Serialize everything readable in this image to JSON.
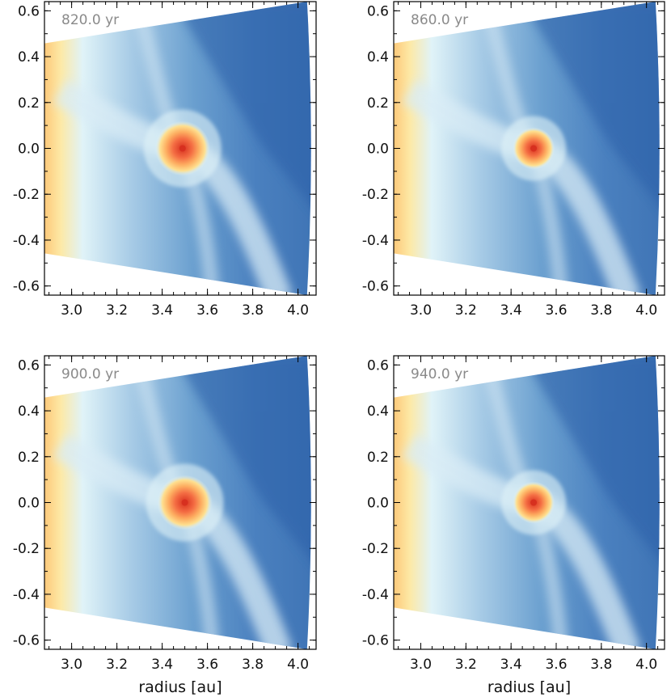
{
  "chart_data": [
    {
      "type": "heatmap",
      "time_label": "820.0 yr",
      "xlabel": "",
      "ylabel": "",
      "xlim": [
        2.88,
        4.08
      ],
      "ylim": [
        -0.64,
        0.64
      ],
      "xticks": [
        "3.0",
        "3.2",
        "3.4",
        "3.6",
        "3.8",
        "4.0"
      ],
      "yticks": [
        "0.6",
        "0.4",
        "0.2",
        "0.0",
        "-0.2",
        "-0.4",
        "-0.6"
      ],
      "planet": {
        "x": 3.49,
        "y": 0.0
      }
    },
    {
      "type": "heatmap",
      "time_label": "860.0 yr",
      "xlabel": "",
      "ylabel": "",
      "xlim": [
        2.88,
        4.08
      ],
      "ylim": [
        -0.64,
        0.64
      ],
      "xticks": [
        "3.0",
        "3.2",
        "3.4",
        "3.6",
        "3.8",
        "4.0"
      ],
      "yticks": [
        "0.6",
        "0.4",
        "0.2",
        "0.0",
        "-0.2",
        "-0.4",
        "-0.6"
      ],
      "planet": {
        "x": 3.5,
        "y": 0.0
      }
    },
    {
      "type": "heatmap",
      "time_label": "900.0 yr",
      "xlabel": "radius [au]",
      "ylabel": "",
      "xlim": [
        2.88,
        4.08
      ],
      "ylim": [
        -0.64,
        0.64
      ],
      "xticks": [
        "3.0",
        "3.2",
        "3.4",
        "3.6",
        "3.8",
        "4.0"
      ],
      "yticks": [
        "0.6",
        "0.4",
        "0.2",
        "0.0",
        "-0.2",
        "-0.4",
        "-0.6"
      ],
      "planet": {
        "x": 3.5,
        "y": 0.0
      }
    },
    {
      "type": "heatmap",
      "time_label": "940.0 yr",
      "xlabel": "radius [au]",
      "ylabel": "",
      "xlim": [
        2.88,
        4.08
      ],
      "ylim": [
        -0.64,
        0.64
      ],
      "xticks": [
        "3.0",
        "3.2",
        "3.4",
        "3.6",
        "3.8",
        "4.0"
      ],
      "yticks": [
        "0.6",
        "0.4",
        "0.2",
        "0.0",
        "-0.2",
        "-0.4",
        "-0.6"
      ],
      "planet": {
        "x": 3.5,
        "y": 0.0
      }
    }
  ],
  "colors": {
    "hot": "#d7301f",
    "warm": "#fdae61",
    "light": "#e0f3f8",
    "cool": "#6a9fcf",
    "dark": "#2c5fa8"
  }
}
